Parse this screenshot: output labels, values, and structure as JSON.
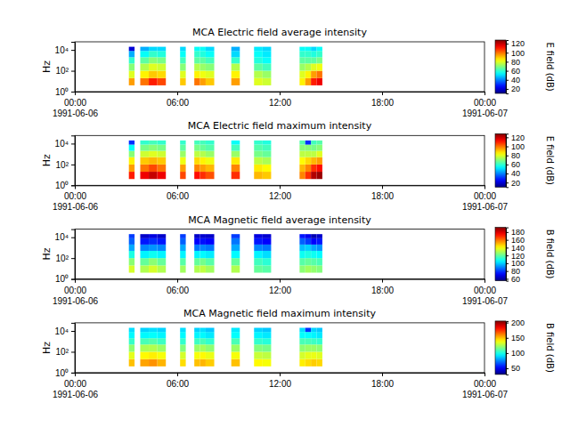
{
  "chart_data": [
    {
      "type": "heatmap",
      "title": "MCA  Electric field average intensity",
      "y_label": "Hz",
      "colorbar_label": "E field (dB)",
      "log": "y",
      "x_start": [
        "1991-06-06 03:10",
        "1991-06-06 03:50",
        "1991-06-06 04:20",
        "1991-06-06 04:50",
        "1991-06-06 06:10",
        "1991-06-06 07:00",
        "1991-06-06 07:20",
        "1991-06-06 07:40",
        "1991-06-06 09:10",
        "1991-06-06 10:30",
        "1991-06-06 11:00",
        "1991-06-06 13:10",
        "1991-06-06 13:30",
        "1991-06-06 13:50",
        "1991-06-06 14:10"
      ],
      "x_end": [
        "1991-06-06 03:30",
        "1991-06-06 04:20",
        "1991-06-06 04:50",
        "1991-06-06 05:20",
        "1991-06-06 06:30",
        "1991-06-06 07:20",
        "1991-06-06 07:40",
        "1991-06-06 08:10",
        "1991-06-06 09:40",
        "1991-06-06 11:00",
        "1991-06-06 11:30",
        "1991-06-06 13:30",
        "1991-06-06 13:50",
        "1991-06-06 14:10",
        "1991-06-06 14:30"
      ],
      "y_edges": [
        4,
        20,
        100,
        500,
        2000,
        8000,
        20000
      ],
      "values": [
        [
          95,
          80,
          70,
          60,
          45,
          20
        ],
        [
          100,
          85,
          75,
          65,
          55,
          45
        ],
        [
          110,
          90,
          80,
          70,
          60,
          50
        ],
        [
          105,
          88,
          78,
          68,
          58,
          50
        ],
        [
          90,
          80,
          70,
          62,
          55,
          50
        ],
        [
          100,
          85,
          75,
          65,
          60,
          55
        ],
        [
          95,
          82,
          72,
          65,
          58,
          55
        ],
        [
          90,
          80,
          70,
          62,
          55,
          50
        ],
        [
          95,
          85,
          75,
          60,
          50,
          45
        ],
        [
          80,
          75,
          65,
          58,
          55,
          52
        ],
        [
          78,
          72,
          62,
          55,
          52,
          50
        ],
        [
          85,
          80,
          72,
          65,
          60,
          55
        ],
        [
          95,
          85,
          75,
          65,
          60,
          55
        ],
        [
          110,
          95,
          80,
          65,
          58,
          50
        ],
        [
          115,
          100,
          82,
          68,
          60,
          55
        ]
      ],
      "xlim": [
        "1991-06-06 00:00",
        "1991-06-07 00:00"
      ],
      "xticks": [
        {
          "value": "1991-06-06 00:00",
          "label": "00:00\n1991-06-06"
        },
        {
          "value": "1991-06-06 06:00",
          "label": "06:00"
        },
        {
          "value": "1991-06-06 12:00",
          "label": "12:00"
        },
        {
          "value": "1991-06-06 18:00",
          "label": "18:00"
        },
        {
          "value": "1991-06-07 00:00",
          "label": "00:00\n1991-06-07"
        }
      ],
      "ylim": [
        1,
        60000
      ],
      "yticks": [
        {
          "value": 1,
          "label": "10⁰"
        },
        {
          "value": 100,
          "label": "10²"
        },
        {
          "value": 10000,
          "label": "10⁴"
        }
      ],
      "zlim": [
        10,
        128
      ],
      "zticks": [
        20,
        40,
        60,
        80,
        100,
        120
      ]
    },
    {
      "type": "heatmap",
      "title": "MCA  Electric field maximum intensity",
      "y_label": "Hz",
      "colorbar_label": "E field (dB)",
      "log": "y",
      "x_start": [
        "1991-06-06 03:10",
        "1991-06-06 03:50",
        "1991-06-06 04:20",
        "1991-06-06 04:50",
        "1991-06-06 06:10",
        "1991-06-06 07:00",
        "1991-06-06 07:20",
        "1991-06-06 07:40",
        "1991-06-06 09:10",
        "1991-06-06 10:30",
        "1991-06-06 11:00",
        "1991-06-06 13:10",
        "1991-06-06 13:30",
        "1991-06-06 13:50",
        "1991-06-06 14:10"
      ],
      "x_end": [
        "1991-06-06 03:30",
        "1991-06-06 04:20",
        "1991-06-06 04:50",
        "1991-06-06 05:20",
        "1991-06-06 06:30",
        "1991-06-06 07:20",
        "1991-06-06 07:40",
        "1991-06-06 08:10",
        "1991-06-06 09:40",
        "1991-06-06 11:00",
        "1991-06-06 11:30",
        "1991-06-06 13:30",
        "1991-06-06 13:50",
        "1991-06-06 14:10",
        "1991-06-06 14:30"
      ],
      "y_edges": [
        4,
        20,
        100,
        500,
        2000,
        8000,
        20000
      ],
      "values": [
        [
          110,
          95,
          85,
          70,
          55,
          30
        ],
        [
          115,
          100,
          90,
          78,
          68,
          60
        ],
        [
          120,
          105,
          92,
          80,
          70,
          62
        ],
        [
          115,
          100,
          90,
          78,
          68,
          60
        ],
        [
          105,
          95,
          82,
          72,
          65,
          60
        ],
        [
          112,
          98,
          88,
          76,
          68,
          62
        ],
        [
          108,
          95,
          85,
          75,
          66,
          62
        ],
        [
          104,
          92,
          82,
          72,
          64,
          60
        ],
        [
          108,
          98,
          86,
          72,
          62,
          55
        ],
        [
          92,
          86,
          76,
          68,
          64,
          60
        ],
        [
          90,
          84,
          74,
          66,
          62,
          58
        ],
        [
          98,
          92,
          84,
          76,
          70,
          64
        ],
        [
          108,
          98,
          88,
          76,
          70,
          30
        ],
        [
          122,
          108,
          92,
          76,
          68,
          62
        ],
        [
          125,
          112,
          95,
          80,
          70,
          64
        ]
      ],
      "xlim": [
        "1991-06-06 00:00",
        "1991-06-07 00:00"
      ],
      "xticks": [
        {
          "value": "1991-06-06 00:00",
          "label": "00:00\n1991-06-06"
        },
        {
          "value": "1991-06-06 06:00",
          "label": "06:00"
        },
        {
          "value": "1991-06-06 12:00",
          "label": "12:00"
        },
        {
          "value": "1991-06-06 18:00",
          "label": "18:00"
        },
        {
          "value": "1991-06-07 00:00",
          "label": "00:00\n1991-06-07"
        }
      ],
      "ylim": [
        1,
        60000
      ],
      "yticks": [
        {
          "value": 1,
          "label": "10⁰"
        },
        {
          "value": 100,
          "label": "10²"
        },
        {
          "value": 10000,
          "label": "10⁴"
        }
      ],
      "zlim": [
        10,
        128
      ],
      "zticks": [
        20,
        40,
        60,
        80,
        100,
        120
      ]
    },
    {
      "type": "heatmap",
      "title": "MCA  Magnetic field average intensity",
      "y_label": "Hz",
      "colorbar_label": "B field (dB)",
      "log": "y",
      "x_start": [
        "1991-06-06 03:10",
        "1991-06-06 03:50",
        "1991-06-06 04:20",
        "1991-06-06 04:50",
        "1991-06-06 06:10",
        "1991-06-06 07:00",
        "1991-06-06 07:20",
        "1991-06-06 07:40",
        "1991-06-06 09:10",
        "1991-06-06 10:30",
        "1991-06-06 11:00",
        "1991-06-06 13:10",
        "1991-06-06 13:30",
        "1991-06-06 13:50",
        "1991-06-06 14:10"
      ],
      "x_end": [
        "1991-06-06 03:30",
        "1991-06-06 04:20",
        "1991-06-06 04:50",
        "1991-06-06 05:20",
        "1991-06-06 06:30",
        "1991-06-06 07:20",
        "1991-06-06 07:40",
        "1991-06-06 08:10",
        "1991-06-06 09:40",
        "1991-06-06 11:00",
        "1991-06-06 11:30",
        "1991-06-06 13:30",
        "1991-06-06 13:50",
        "1991-06-06 14:10",
        "1991-06-06 14:30"
      ],
      "y_edges": [
        4,
        20,
        100,
        500,
        2000,
        8000,
        20000
      ],
      "values": [
        [
          135,
          125,
          110,
          95,
          85,
          80
        ],
        [
          130,
          120,
          105,
          90,
          75,
          65
        ],
        [
          135,
          125,
          108,
          92,
          78,
          68
        ],
        [
          130,
          120,
          105,
          90,
          75,
          65
        ],
        [
          128,
          118,
          105,
          95,
          85,
          80
        ],
        [
          130,
          120,
          105,
          88,
          72,
          65
        ],
        [
          132,
          122,
          106,
          90,
          74,
          66
        ],
        [
          128,
          118,
          104,
          88,
          72,
          65
        ],
        [
          130,
          120,
          106,
          95,
          88,
          80
        ],
        [
          120,
          115,
          105,
          90,
          75,
          68
        ],
        [
          118,
          112,
          102,
          88,
          72,
          66
        ],
        [
          125,
          118,
          108,
          98,
          85,
          75
        ],
        [
          128,
          120,
          110,
          100,
          80,
          70
        ],
        [
          126,
          118,
          108,
          95,
          72,
          62
        ],
        [
          124,
          116,
          106,
          92,
          75,
          65
        ]
      ],
      "xlim": [
        "1991-06-06 00:00",
        "1991-06-07 00:00"
      ],
      "xticks": [
        {
          "value": "1991-06-06 00:00",
          "label": "00:00\n1991-06-06"
        },
        {
          "value": "1991-06-06 06:00",
          "label": "06:00"
        },
        {
          "value": "1991-06-06 12:00",
          "label": "12:00"
        },
        {
          "value": "1991-06-06 18:00",
          "label": "18:00"
        },
        {
          "value": "1991-06-07 00:00",
          "label": "00:00\n1991-06-07"
        }
      ],
      "ylim": [
        1,
        60000
      ],
      "yticks": [
        {
          "value": 1,
          "label": "10⁰"
        },
        {
          "value": 100,
          "label": "10²"
        },
        {
          "value": 10000,
          "label": "10⁴"
        }
      ],
      "zlim": [
        55,
        192
      ],
      "zticks": [
        60,
        80,
        100,
        120,
        140,
        160,
        180
      ]
    },
    {
      "type": "heatmap",
      "title": "MCA  Magnetic field maximum intensity",
      "y_label": "Hz",
      "colorbar_label": "B field (dB)",
      "log": "y",
      "x_start": [
        "1991-06-06 03:10",
        "1991-06-06 03:50",
        "1991-06-06 04:20",
        "1991-06-06 04:50",
        "1991-06-06 06:10",
        "1991-06-06 07:00",
        "1991-06-06 07:20",
        "1991-06-06 07:40",
        "1991-06-06 09:10",
        "1991-06-06 10:30",
        "1991-06-06 11:00",
        "1991-06-06 13:10",
        "1991-06-06 13:30",
        "1991-06-06 13:50",
        "1991-06-06 14:10"
      ],
      "x_end": [
        "1991-06-06 03:30",
        "1991-06-06 04:20",
        "1991-06-06 04:50",
        "1991-06-06 05:20",
        "1991-06-06 06:30",
        "1991-06-06 07:20",
        "1991-06-06 07:40",
        "1991-06-06 08:10",
        "1991-06-06 09:40",
        "1991-06-06 11:00",
        "1991-06-06 11:30",
        "1991-06-06 13:30",
        "1991-06-06 13:50",
        "1991-06-06 14:10",
        "1991-06-06 14:30"
      ],
      "y_edges": [
        4,
        20,
        100,
        500,
        2000,
        8000,
        20000
      ],
      "values": [
        [
          150,
          135,
          120,
          105,
          95,
          90
        ],
        [
          155,
          140,
          125,
          108,
          95,
          88
        ],
        [
          158,
          142,
          126,
          110,
          96,
          90
        ],
        [
          152,
          138,
          122,
          106,
          94,
          88
        ],
        [
          145,
          132,
          118,
          104,
          95,
          90
        ],
        [
          150,
          138,
          122,
          106,
          94,
          88
        ],
        [
          152,
          140,
          124,
          108,
          95,
          90
        ],
        [
          148,
          136,
          120,
          104,
          92,
          86
        ],
        [
          150,
          138,
          122,
          108,
          96,
          92
        ],
        [
          140,
          130,
          118,
          104,
          94,
          88
        ],
        [
          138,
          128,
          116,
          102,
          92,
          86
        ],
        [
          142,
          132,
          120,
          108,
          96,
          90
        ],
        [
          145,
          135,
          122,
          108,
          96,
          60
        ],
        [
          148,
          136,
          122,
          106,
          94,
          88
        ],
        [
          146,
          134,
          120,
          104,
          92,
          86
        ]
      ],
      "xlim": [
        "1991-06-06 00:00",
        "1991-06-07 00:00"
      ],
      "xticks": [
        {
          "value": "1991-06-06 00:00",
          "label": "00:00\n1991-06-06"
        },
        {
          "value": "1991-06-06 06:00",
          "label": "06:00"
        },
        {
          "value": "1991-06-06 12:00",
          "label": "12:00"
        },
        {
          "value": "1991-06-06 18:00",
          "label": "18:00"
        },
        {
          "value": "1991-06-07 00:00",
          "label": "00:00\n1991-06-07"
        }
      ],
      "ylim": [
        1,
        60000
      ],
      "yticks": [
        {
          "value": 1,
          "label": "10⁰"
        },
        {
          "value": 100,
          "label": "10²"
        },
        {
          "value": 10000,
          "label": "10⁴"
        }
      ],
      "zlim": [
        30,
        205
      ],
      "zticks": [
        50,
        100,
        150,
        200
      ]
    }
  ]
}
